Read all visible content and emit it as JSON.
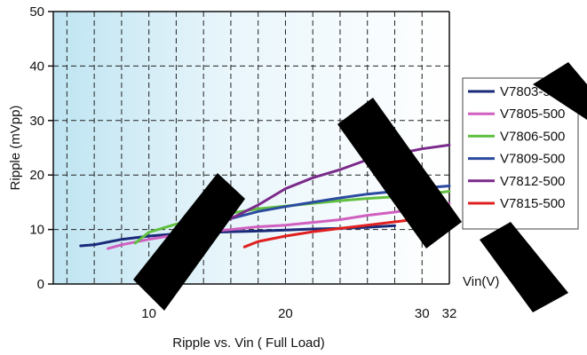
{
  "chart_data": {
    "type": "line",
    "title": "Ripple vs. Vin ( Full Load)",
    "xlabel": "Vin(V)",
    "ylabel": "Ripple (mVpp)",
    "xlim": [
      3,
      32
    ],
    "ylim": [
      0,
      50
    ],
    "x_ticks": [
      {
        "value": 10,
        "label": "10"
      },
      {
        "value": 20,
        "label": "20"
      },
      {
        "value": 30,
        "label": "30"
      },
      {
        "value": 32,
        "label": "32"
      }
    ],
    "y_ticks": [
      {
        "value": 0,
        "label": "0"
      },
      {
        "value": 10,
        "label": "10"
      },
      {
        "value": 20,
        "label": "20"
      },
      {
        "value": 30,
        "label": "30"
      },
      {
        "value": 40,
        "label": "40"
      },
      {
        "value": 50,
        "label": "50"
      }
    ],
    "grid": true,
    "legend_position": "right",
    "series": [
      {
        "name": "V7803-500",
        "color": "#1a2a7a",
        "points": [
          [
            5,
            7.0
          ],
          [
            6,
            7.2
          ],
          [
            8,
            8.2
          ],
          [
            10,
            8.8
          ],
          [
            12,
            9.2
          ],
          [
            14,
            9.4
          ],
          [
            16,
            9.6
          ],
          [
            18,
            9.7
          ],
          [
            20,
            9.9
          ],
          [
            22,
            10.1
          ],
          [
            24,
            10.2
          ],
          [
            26,
            10.4
          ],
          [
            28,
            10.7
          ]
        ]
      },
      {
        "name": "V7805-500",
        "color": "#d060c0",
        "points": [
          [
            7,
            6.5
          ],
          [
            8,
            7.2
          ],
          [
            10,
            8.2
          ],
          [
            12,
            9.0
          ],
          [
            14,
            9.6
          ],
          [
            16,
            10.0
          ],
          [
            18,
            10.5
          ],
          [
            20,
            10.8
          ],
          [
            22,
            11.3
          ],
          [
            24,
            11.8
          ],
          [
            26,
            12.6
          ],
          [
            28,
            13.2
          ],
          [
            30,
            14.0
          ],
          [
            32,
            14.8
          ]
        ]
      },
      {
        "name": "V7806-500",
        "color": "#60c040",
        "points": [
          [
            9,
            7.5
          ],
          [
            10,
            9.5
          ],
          [
            12,
            11.0
          ],
          [
            14,
            12.0
          ],
          [
            16,
            13.0
          ],
          [
            18,
            13.8
          ],
          [
            20,
            14.3
          ],
          [
            22,
            14.8
          ],
          [
            24,
            15.3
          ],
          [
            26,
            15.7
          ],
          [
            28,
            16.0
          ],
          [
            30,
            16.4
          ],
          [
            32,
            17.0
          ]
        ]
      },
      {
        "name": "V7809-500",
        "color": "#2a4aa0",
        "points": [
          [
            11,
            7.2
          ],
          [
            12,
            8.2
          ],
          [
            14,
            10.5
          ],
          [
            16,
            12.0
          ],
          [
            18,
            13.3
          ],
          [
            20,
            14.2
          ],
          [
            22,
            15.0
          ],
          [
            24,
            15.8
          ],
          [
            26,
            16.5
          ],
          [
            28,
            17.0
          ],
          [
            30,
            17.6
          ],
          [
            32,
            18.0
          ]
        ]
      },
      {
        "name": "V7812-500",
        "color": "#7a2a8a",
        "points": [
          [
            14,
            9.8
          ],
          [
            16,
            12.0
          ],
          [
            18,
            14.5
          ],
          [
            20,
            17.5
          ],
          [
            22,
            19.5
          ],
          [
            24,
            21.0
          ],
          [
            26,
            22.8
          ],
          [
            28,
            23.8
          ],
          [
            30,
            24.8
          ],
          [
            32,
            25.5
          ]
        ]
      },
      {
        "name": "V7815-500",
        "color": "#e02020",
        "points": [
          [
            17,
            6.8
          ],
          [
            18,
            7.8
          ],
          [
            20,
            8.8
          ],
          [
            22,
            9.6
          ],
          [
            24,
            10.2
          ],
          [
            26,
            10.8
          ],
          [
            28,
            11.4
          ],
          [
            30,
            12.0
          ],
          [
            32,
            12.8
          ]
        ]
      }
    ]
  }
}
